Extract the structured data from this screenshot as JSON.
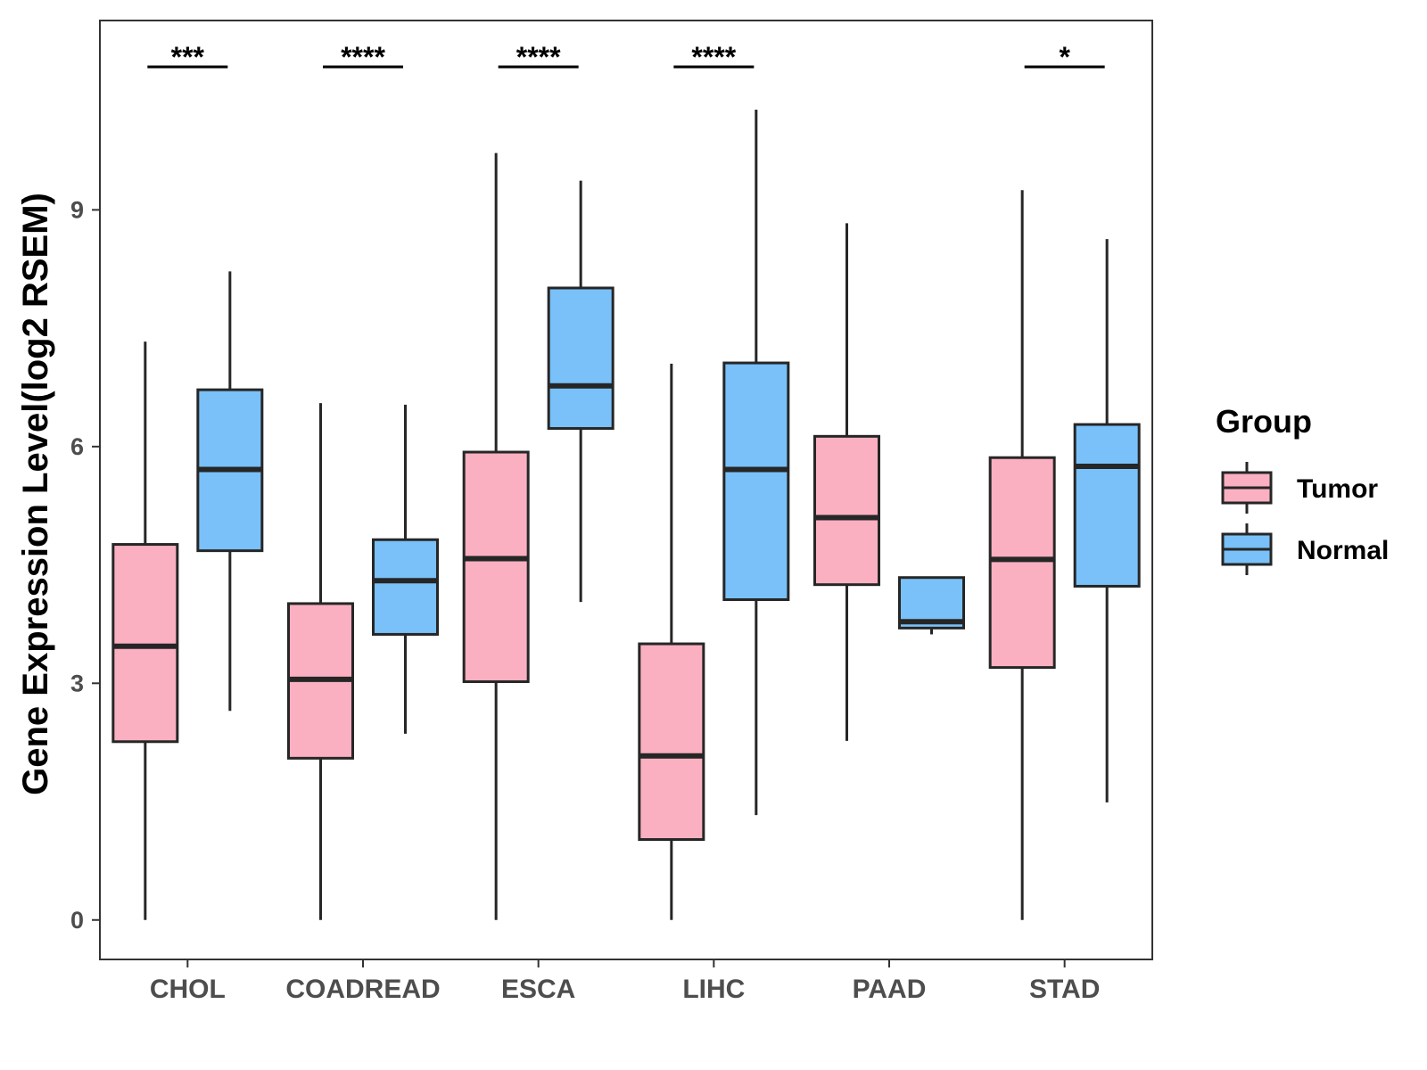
{
  "chart_data": {
    "type": "boxplot",
    "title": "",
    "xlabel": "",
    "ylabel": "Gene Expression Level(log2 RSEM)",
    "ylim": [
      -0.5,
      11.4
    ],
    "yticks": [
      0,
      3,
      6,
      9
    ],
    "ytick_labels": [
      "0",
      "3",
      "6",
      "9"
    ],
    "grid": false,
    "categories": [
      "CHOL",
      "COADREAD",
      "ESCA",
      "LIHC",
      "PAAD",
      "STAD"
    ],
    "legend": {
      "title": "Group",
      "position": "right",
      "entries": [
        "Tumor",
        "Normal"
      ]
    },
    "series": [
      {
        "name": "Tumor",
        "color": "#FAB0C1",
        "boxes": [
          {
            "min": 0.0,
            "q1": 2.26,
            "median": 3.47,
            "q3": 4.76,
            "max": 7.33
          },
          {
            "min": 0.0,
            "q1": 2.05,
            "median": 3.05,
            "q3": 4.01,
            "max": 6.55
          },
          {
            "min": 0.0,
            "q1": 3.02,
            "median": 4.58,
            "q3": 5.93,
            "max": 9.72
          },
          {
            "min": 0.0,
            "q1": 1.02,
            "median": 2.08,
            "q3": 3.5,
            "max": 7.05
          },
          {
            "min": 2.27,
            "q1": 4.25,
            "median": 5.1,
            "q3": 6.13,
            "max": 8.83
          },
          {
            "min": 0.0,
            "q1": 3.2,
            "median": 4.57,
            "q3": 5.86,
            "max": 9.25
          }
        ]
      },
      {
        "name": "Normal",
        "color": "#79C1F8",
        "boxes": [
          {
            "min": 2.65,
            "q1": 4.68,
            "median": 5.71,
            "q3": 6.72,
            "max": 8.22
          },
          {
            "min": 2.36,
            "q1": 3.62,
            "median": 4.3,
            "q3": 4.82,
            "max": 6.53
          },
          {
            "min": 4.03,
            "q1": 6.23,
            "median": 6.77,
            "q3": 8.01,
            "max": 9.37
          },
          {
            "min": 1.33,
            "q1": 4.06,
            "median": 5.71,
            "q3": 7.06,
            "max": 10.27
          },
          {
            "min": 3.62,
            "q1": 3.7,
            "median": 3.78,
            "q3": 4.34,
            "max": 4.34
          },
          {
            "min": 1.49,
            "q1": 4.23,
            "median": 5.75,
            "q3": 6.28,
            "max": 8.63
          }
        ]
      }
    ],
    "annotations": [
      {
        "category": "CHOL",
        "text": "***"
      },
      {
        "category": "COADREAD",
        "text": "****"
      },
      {
        "category": "ESCA",
        "text": "****"
      },
      {
        "category": "LIHC",
        "text": "****"
      },
      {
        "category": "STAD",
        "text": "*"
      }
    ]
  }
}
